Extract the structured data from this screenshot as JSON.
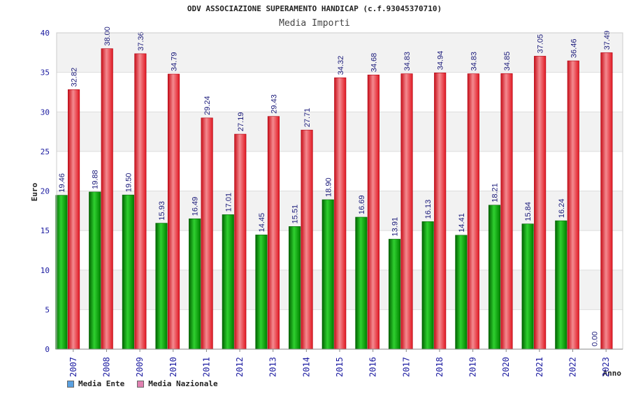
{
  "chart_data": {
    "type": "bar",
    "title": "ODV ASSOCIAZIONE SUPERAMENTO HANDICAP (c.f.93045370710)",
    "subtitle": "Media Importi",
    "xlabel": "Anno",
    "ylabel": "Euro",
    "ylim": [
      0,
      40
    ],
    "yticks": [
      0,
      5,
      10,
      15,
      20,
      25,
      30,
      35,
      40
    ],
    "grid": true,
    "legend_position": "bottom-left",
    "categories": [
      "2007",
      "2008",
      "2009",
      "2010",
      "2011",
      "2012",
      "2013",
      "2014",
      "2015",
      "2016",
      "2017",
      "2018",
      "2019",
      "2020",
      "2021",
      "2022",
      "2023"
    ],
    "series": [
      {
        "name": "Media Ente",
        "color": "#00a000",
        "legend_color": "#5aa0e0",
        "values": [
          19.46,
          19.88,
          19.5,
          15.93,
          16.49,
          17.01,
          14.45,
          15.51,
          18.9,
          16.69,
          13.91,
          16.13,
          14.41,
          18.21,
          15.84,
          16.24,
          0.0
        ],
        "labels": [
          "19.46",
          "19.88",
          "19.50",
          "15.93",
          "16.49",
          "17.01",
          "14.45",
          "15.51",
          "18.90",
          "16.69",
          "13.91",
          "16.13",
          "14.41",
          "18.21",
          "15.84",
          "16.24",
          "0.00"
        ]
      },
      {
        "name": "Media Nazionale",
        "color": "#e8202a",
        "legend_color": "#e080b0",
        "values": [
          32.82,
          38.0,
          37.36,
          34.79,
          29.24,
          27.19,
          29.43,
          27.71,
          34.32,
          34.68,
          34.83,
          34.94,
          34.83,
          34.85,
          37.05,
          36.46,
          37.49
        ],
        "labels": [
          "32.82",
          "38.00",
          "37.36",
          "34.79",
          "29.24",
          "27.19",
          "29.43",
          "27.71",
          "34.32",
          "34.68",
          "34.83",
          "34.94",
          "34.83",
          "34.85",
          "37.05",
          "36.46",
          "37.49"
        ]
      }
    ]
  }
}
